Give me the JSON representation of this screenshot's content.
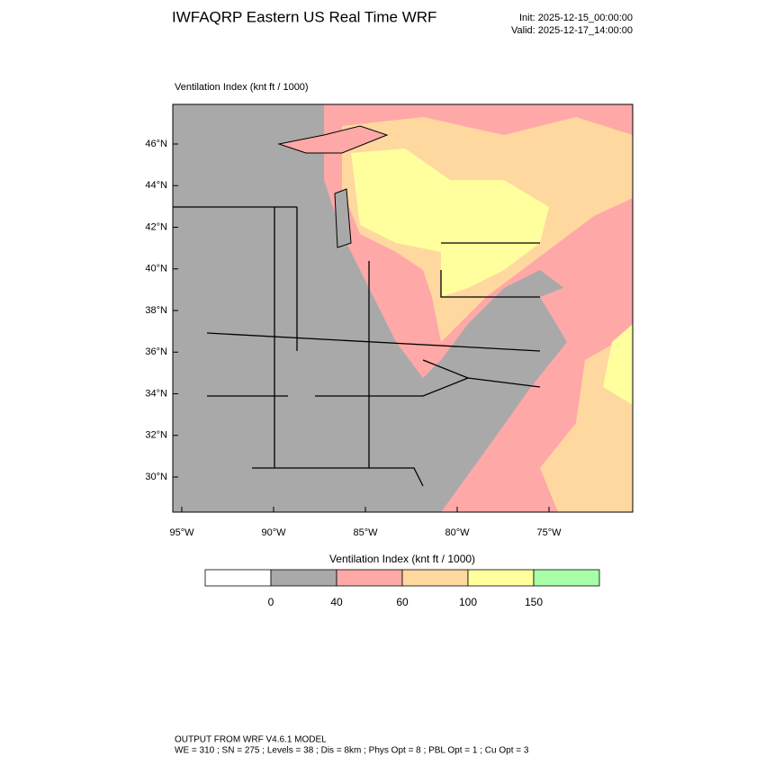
{
  "header": {
    "title": "IWFAQRP Eastern US Real Time WRF",
    "init": "Init: 2025-12-15_00:00:00",
    "valid": "Valid: 2025-12-17_14:00:00"
  },
  "map": {
    "label": "Ventilation Index   (knt ft / 1000)",
    "lat_labels": [
      "46°N",
      "44°N",
      "42°N",
      "40°N",
      "38°N",
      "36°N",
      "34°N",
      "32°N",
      "30°N"
    ],
    "lon_labels": [
      "95°W",
      "90°W",
      "85°W",
      "80°W",
      "75°W"
    ]
  },
  "colorbar": {
    "title": "Ventilation Index  (knt ft / 1000)",
    "colors": [
      "#ffffff",
      "#a9a9a9",
      "#ffa8a8",
      "#ffd8a0",
      "#ffff9e",
      "#a8ffa8"
    ],
    "tick_labels": [
      "0",
      "40",
      "60",
      "100",
      "150"
    ]
  },
  "footer": {
    "line1": "OUTPUT FROM WRF V4.6.1 MODEL",
    "line2": "WE = 310 ; SN = 275 ; Levels = 38 ; Dis = 8km ; Phys Opt = 8 ; PBL Opt = 1 ; Cu Opt = 3"
  }
}
